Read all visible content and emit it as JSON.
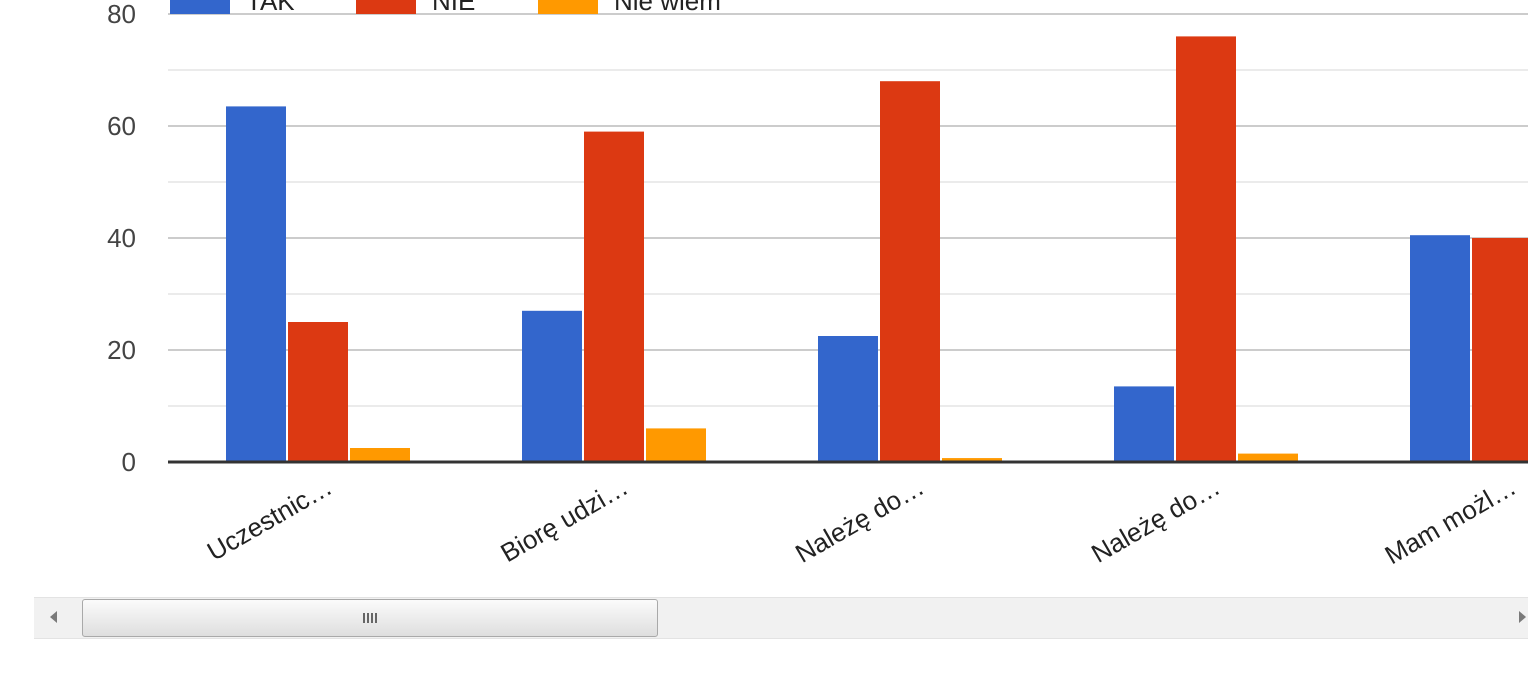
{
  "chart_data": {
    "type": "bar",
    "categories": [
      "Uczestnic…",
      "Biorę udzi…",
      "Należę do…",
      "Należę do…",
      "Mam możl…"
    ],
    "series": [
      {
        "name": "TAK",
        "color": "#3366cc",
        "values": [
          63.5,
          27,
          22.5,
          13.5,
          40.5
        ]
      },
      {
        "name": "NIE",
        "color": "#dc3912",
        "values": [
          25,
          59,
          68,
          76,
          40
        ]
      },
      {
        "name": "Nie wiem",
        "color": "#ff9900",
        "values": [
          2.5,
          6,
          0.7,
          1.5,
          null
        ]
      }
    ],
    "ylim": [
      0,
      80
    ],
    "yticks": [
      0,
      20,
      40,
      60,
      80
    ],
    "grid": true,
    "legend_position": "top-left",
    "title": "",
    "xlabel": "",
    "ylabel": ""
  }
}
